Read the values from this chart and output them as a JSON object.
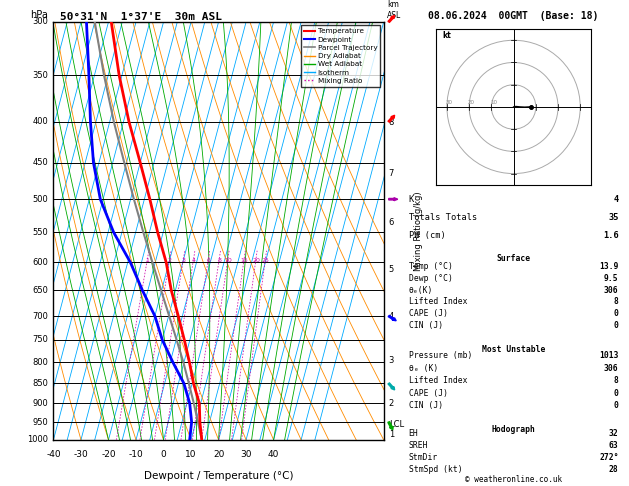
{
  "title_left": "50°31'N  1°37'E  30m ASL",
  "title_right": "08.06.2024  00GMT  (Base: 18)",
  "xlabel": "Dewpoint / Temperature (°C)",
  "pressure_levels": [
    300,
    350,
    400,
    450,
    500,
    550,
    600,
    650,
    700,
    750,
    800,
    850,
    900,
    950,
    1000
  ],
  "temp_min": -40,
  "temp_max": 40,
  "temperature_profile": {
    "pressure": [
      1000,
      950,
      900,
      850,
      800,
      750,
      700,
      650,
      600,
      550,
      500,
      450,
      400,
      350,
      300
    ],
    "temp": [
      13.9,
      11.5,
      9.5,
      5.5,
      2.0,
      -2.0,
      -6.5,
      -11.5,
      -16.0,
      -22.0,
      -28.0,
      -35.0,
      -43.0,
      -51.0,
      -59.0
    ]
  },
  "dewpoint_profile": {
    "pressure": [
      1000,
      950,
      900,
      850,
      800,
      750,
      700,
      650,
      600,
      550,
      500,
      450,
      400,
      350,
      300
    ],
    "temp": [
      9.5,
      8.5,
      6.0,
      2.0,
      -4.0,
      -10.0,
      -15.0,
      -22.0,
      -29.0,
      -38.0,
      -46.0,
      -52.0,
      -57.0,
      -62.0,
      -68.0
    ]
  },
  "parcel_profile": {
    "pressure": [
      1000,
      950,
      900,
      850,
      800,
      750,
      700,
      650,
      600,
      550,
      500,
      450,
      400,
      350,
      300
    ],
    "temp": [
      13.9,
      10.8,
      7.5,
      3.8,
      -0.2,
      -4.8,
      -9.8,
      -15.2,
      -21.0,
      -27.2,
      -33.8,
      -40.8,
      -48.5,
      -56.5,
      -65.0
    ]
  },
  "mixing_ratios": [
    1,
    2,
    3,
    4,
    6,
    8,
    10,
    15,
    20,
    25
  ],
  "km_ticks_pressure": [
    984,
    900,
    795,
    700,
    612,
    534,
    464,
    401
  ],
  "km_ticks_values": [
    1,
    2,
    3,
    4,
    5,
    6,
    7,
    8
  ],
  "lcl_pressure": 958,
  "colors": {
    "temperature": "#ff0000",
    "dewpoint": "#0000ff",
    "parcel": "#808080",
    "dry_adiabat": "#ff8c00",
    "wet_adiabat": "#00aa00",
    "isotherm": "#00aaff",
    "mixing_ratio": "#cc00aa",
    "background": "#ffffff"
  },
  "info_panel": {
    "K": "4",
    "Totals_Totals": "35",
    "PW_cm": "1.6",
    "Surface_Temp": "13.9",
    "Surface_Dewp": "9.5",
    "Surface_theta_e": "306",
    "Surface_LI": "8",
    "Surface_CAPE": "0",
    "Surface_CIN": "0",
    "MU_Pressure": "1013",
    "MU_theta_e": "306",
    "MU_LI": "8",
    "MU_CAPE": "0",
    "MU_CIN": "0",
    "EH": "32",
    "SREH": "63",
    "StmDir": "272°",
    "StmSpd_kt": "28"
  }
}
